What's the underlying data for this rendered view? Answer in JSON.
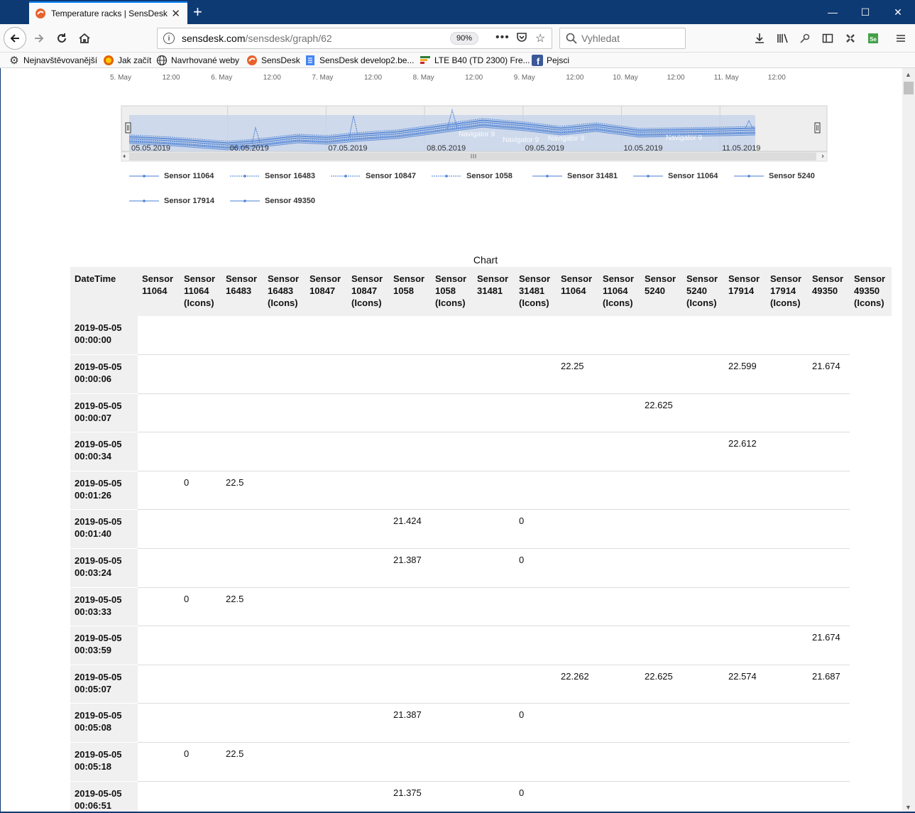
{
  "browser": {
    "tab_title": "Temperature racks | SensDesk",
    "url_host": "sensdesk.com",
    "url_path": "/sensdesk/graph/62",
    "zoom": "90%",
    "search_placeholder": "Vyhledat",
    "bookmarks": [
      "Nejnavštěvovanější",
      "Jak začít",
      "Navrhované weby",
      "SensDesk",
      "SensDesk develop2.be...",
      "LTE B40 (TD 2300) Fre...",
      "Pejsci"
    ]
  },
  "axis": {
    "top_ticks": [
      "5. May",
      "12:00",
      "6. May",
      "12:00",
      "7. May",
      "12:00",
      "8. May",
      "12:00",
      "9. May",
      "12:00",
      "10. May",
      "12:00",
      "11. May",
      "12:00"
    ],
    "navigator_dates": [
      "05.05.2019",
      "06.05.2019",
      "07.05.2019",
      "08.05.2019",
      "09.05.2019",
      "10.05.2019",
      "11.05.2019"
    ],
    "navigator_labels": [
      "Navigator 9",
      "Navigator 9",
      "Navigator 9",
      "Navigator 9"
    ]
  },
  "legend": [
    "Sensor 11064",
    "Sensor 16483",
    "Sensor 10847",
    "Sensor 1058",
    "Sensor 31481",
    "Sensor 11064",
    "Sensor 5240",
    "Sensor 17914",
    "Sensor 49350"
  ],
  "table": {
    "caption": "Chart",
    "headers": [
      [
        "DateTime"
      ],
      [
        "Sensor",
        "11064"
      ],
      [
        "Sensor",
        "11064",
        "(Icons)"
      ],
      [
        "Sensor",
        "16483"
      ],
      [
        "Sensor",
        "16483",
        "(Icons)"
      ],
      [
        "Sensor",
        "10847"
      ],
      [
        "Sensor",
        "10847",
        "(Icons)"
      ],
      [
        "Sensor",
        "1058"
      ],
      [
        "Sensor",
        "1058",
        "(Icons)"
      ],
      [
        "Sensor",
        "31481"
      ],
      [
        "Sensor",
        "31481",
        "(Icons)"
      ],
      [
        "Sensor",
        "11064"
      ],
      [
        "Sensor",
        "11064",
        "(Icons)"
      ],
      [
        "Sensor",
        "5240"
      ],
      [
        "Sensor",
        "5240",
        "(Icons)"
      ],
      [
        "Sensor",
        "17914"
      ],
      [
        "Sensor",
        "17914",
        "(Icons)"
      ],
      [
        "Sensor",
        "49350"
      ],
      [
        "Sensor",
        "49350",
        "(Icons)"
      ]
    ],
    "rows": [
      [
        "2019-05-05 00:00:00",
        "",
        "",
        "",
        "",
        "",
        "",
        "",
        "",
        "",
        "",
        "",
        "",
        "",
        "",
        "",
        "",
        "",
        ""
      ],
      [
        "2019-05-05 00:00:06",
        "",
        "",
        "",
        "",
        "",
        "",
        "",
        "",
        "",
        "",
        "22.25",
        "",
        "",
        "",
        "22.599",
        "",
        "21.674",
        ""
      ],
      [
        "2019-05-05 00:00:07",
        "",
        "",
        "",
        "",
        "",
        "",
        "",
        "",
        "",
        "",
        "",
        "",
        "22.625",
        "",
        "",
        "",
        "",
        ""
      ],
      [
        "2019-05-05 00:00:34",
        "",
        "",
        "",
        "",
        "",
        "",
        "",
        "",
        "",
        "",
        "",
        "",
        "",
        "",
        "22.612",
        "",
        "",
        ""
      ],
      [
        "2019-05-05 00:01:26",
        "",
        "0",
        "22.5",
        "",
        "",
        "",
        "",
        "",
        "",
        "",
        "",
        "",
        "",
        "",
        "",
        "",
        "",
        ""
      ],
      [
        "2019-05-05 00:01:40",
        "",
        "",
        "",
        "",
        "",
        "",
        "21.424",
        "",
        "",
        "0",
        "",
        "",
        "",
        "",
        "",
        "",
        "",
        ""
      ],
      [
        "2019-05-05 00:03:24",
        "",
        "",
        "",
        "",
        "",
        "",
        "21.387",
        "",
        "",
        "0",
        "",
        "",
        "",
        "",
        "",
        "",
        "",
        ""
      ],
      [
        "2019-05-05 00:03:33",
        "",
        "0",
        "22.5",
        "",
        "",
        "",
        "",
        "",
        "",
        "",
        "",
        "",
        "",
        "",
        "",
        "",
        "",
        ""
      ],
      [
        "2019-05-05 00:03:59",
        "",
        "",
        "",
        "",
        "",
        "",
        "",
        "",
        "",
        "",
        "",
        "",
        "",
        "",
        "",
        "",
        "21.674",
        ""
      ],
      [
        "2019-05-05 00:05:07",
        "",
        "",
        "",
        "",
        "",
        "",
        "",
        "",
        "",
        "",
        "22.262",
        "",
        "22.625",
        "",
        "22.574",
        "",
        "21.687",
        ""
      ],
      [
        "2019-05-05 00:05:08",
        "",
        "",
        "",
        "",
        "",
        "",
        "21.387",
        "",
        "",
        "0",
        "",
        "",
        "",
        "",
        "",
        "",
        "",
        ""
      ],
      [
        "2019-05-05 00:05:18",
        "",
        "0",
        "22.5",
        "",
        "",
        "",
        "",
        "",
        "",
        "",
        "",
        "",
        "",
        "",
        "",
        "",
        "",
        ""
      ],
      [
        "2019-05-05 00:06:51",
        "",
        "",
        "",
        "",
        "",
        "",
        "21.375",
        "",
        "",
        "0",
        "",
        "",
        "",
        "",
        "",
        "",
        "",
        ""
      ]
    ]
  },
  "colors": {
    "series": "#4a7fd4",
    "titlebar": "#0e3a74",
    "navigator_bg": "#eeeeee"
  }
}
